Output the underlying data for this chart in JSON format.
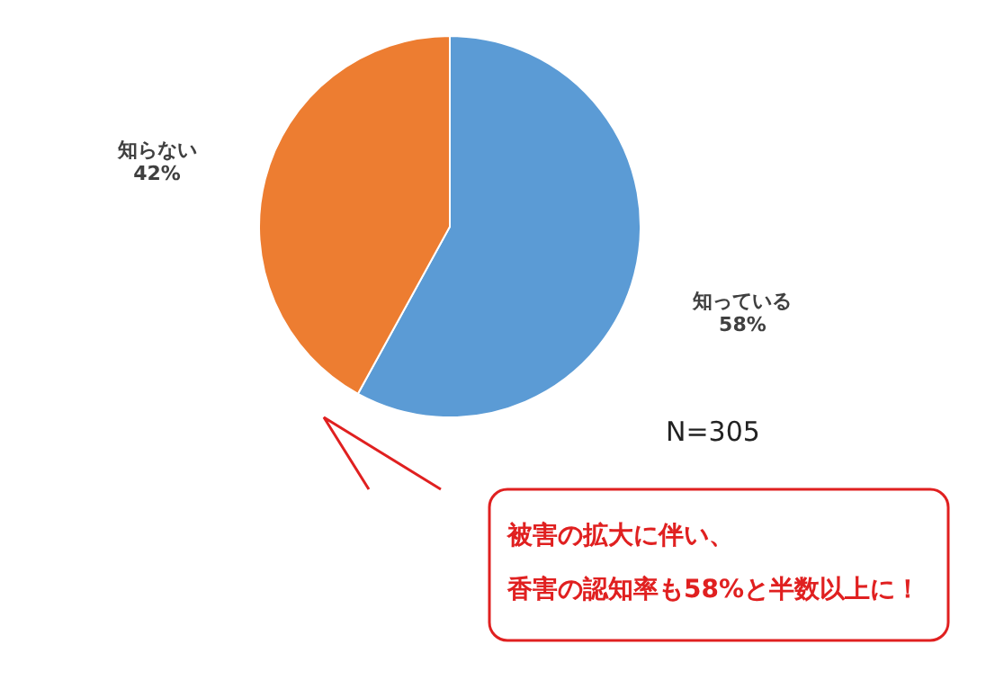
{
  "chart_data": {
    "type": "pie",
    "categories": [
      "知っている",
      "知らない"
    ],
    "values": [
      58,
      42
    ],
    "colors": [
      "#5b9bd5",
      "#ed7d31"
    ],
    "value_labels": [
      "58%",
      "42%"
    ],
    "annotations": [
      "N=305",
      "被害の拡大に伴い、",
      "香害の認知率も58%と半数以上に！"
    ]
  }
}
